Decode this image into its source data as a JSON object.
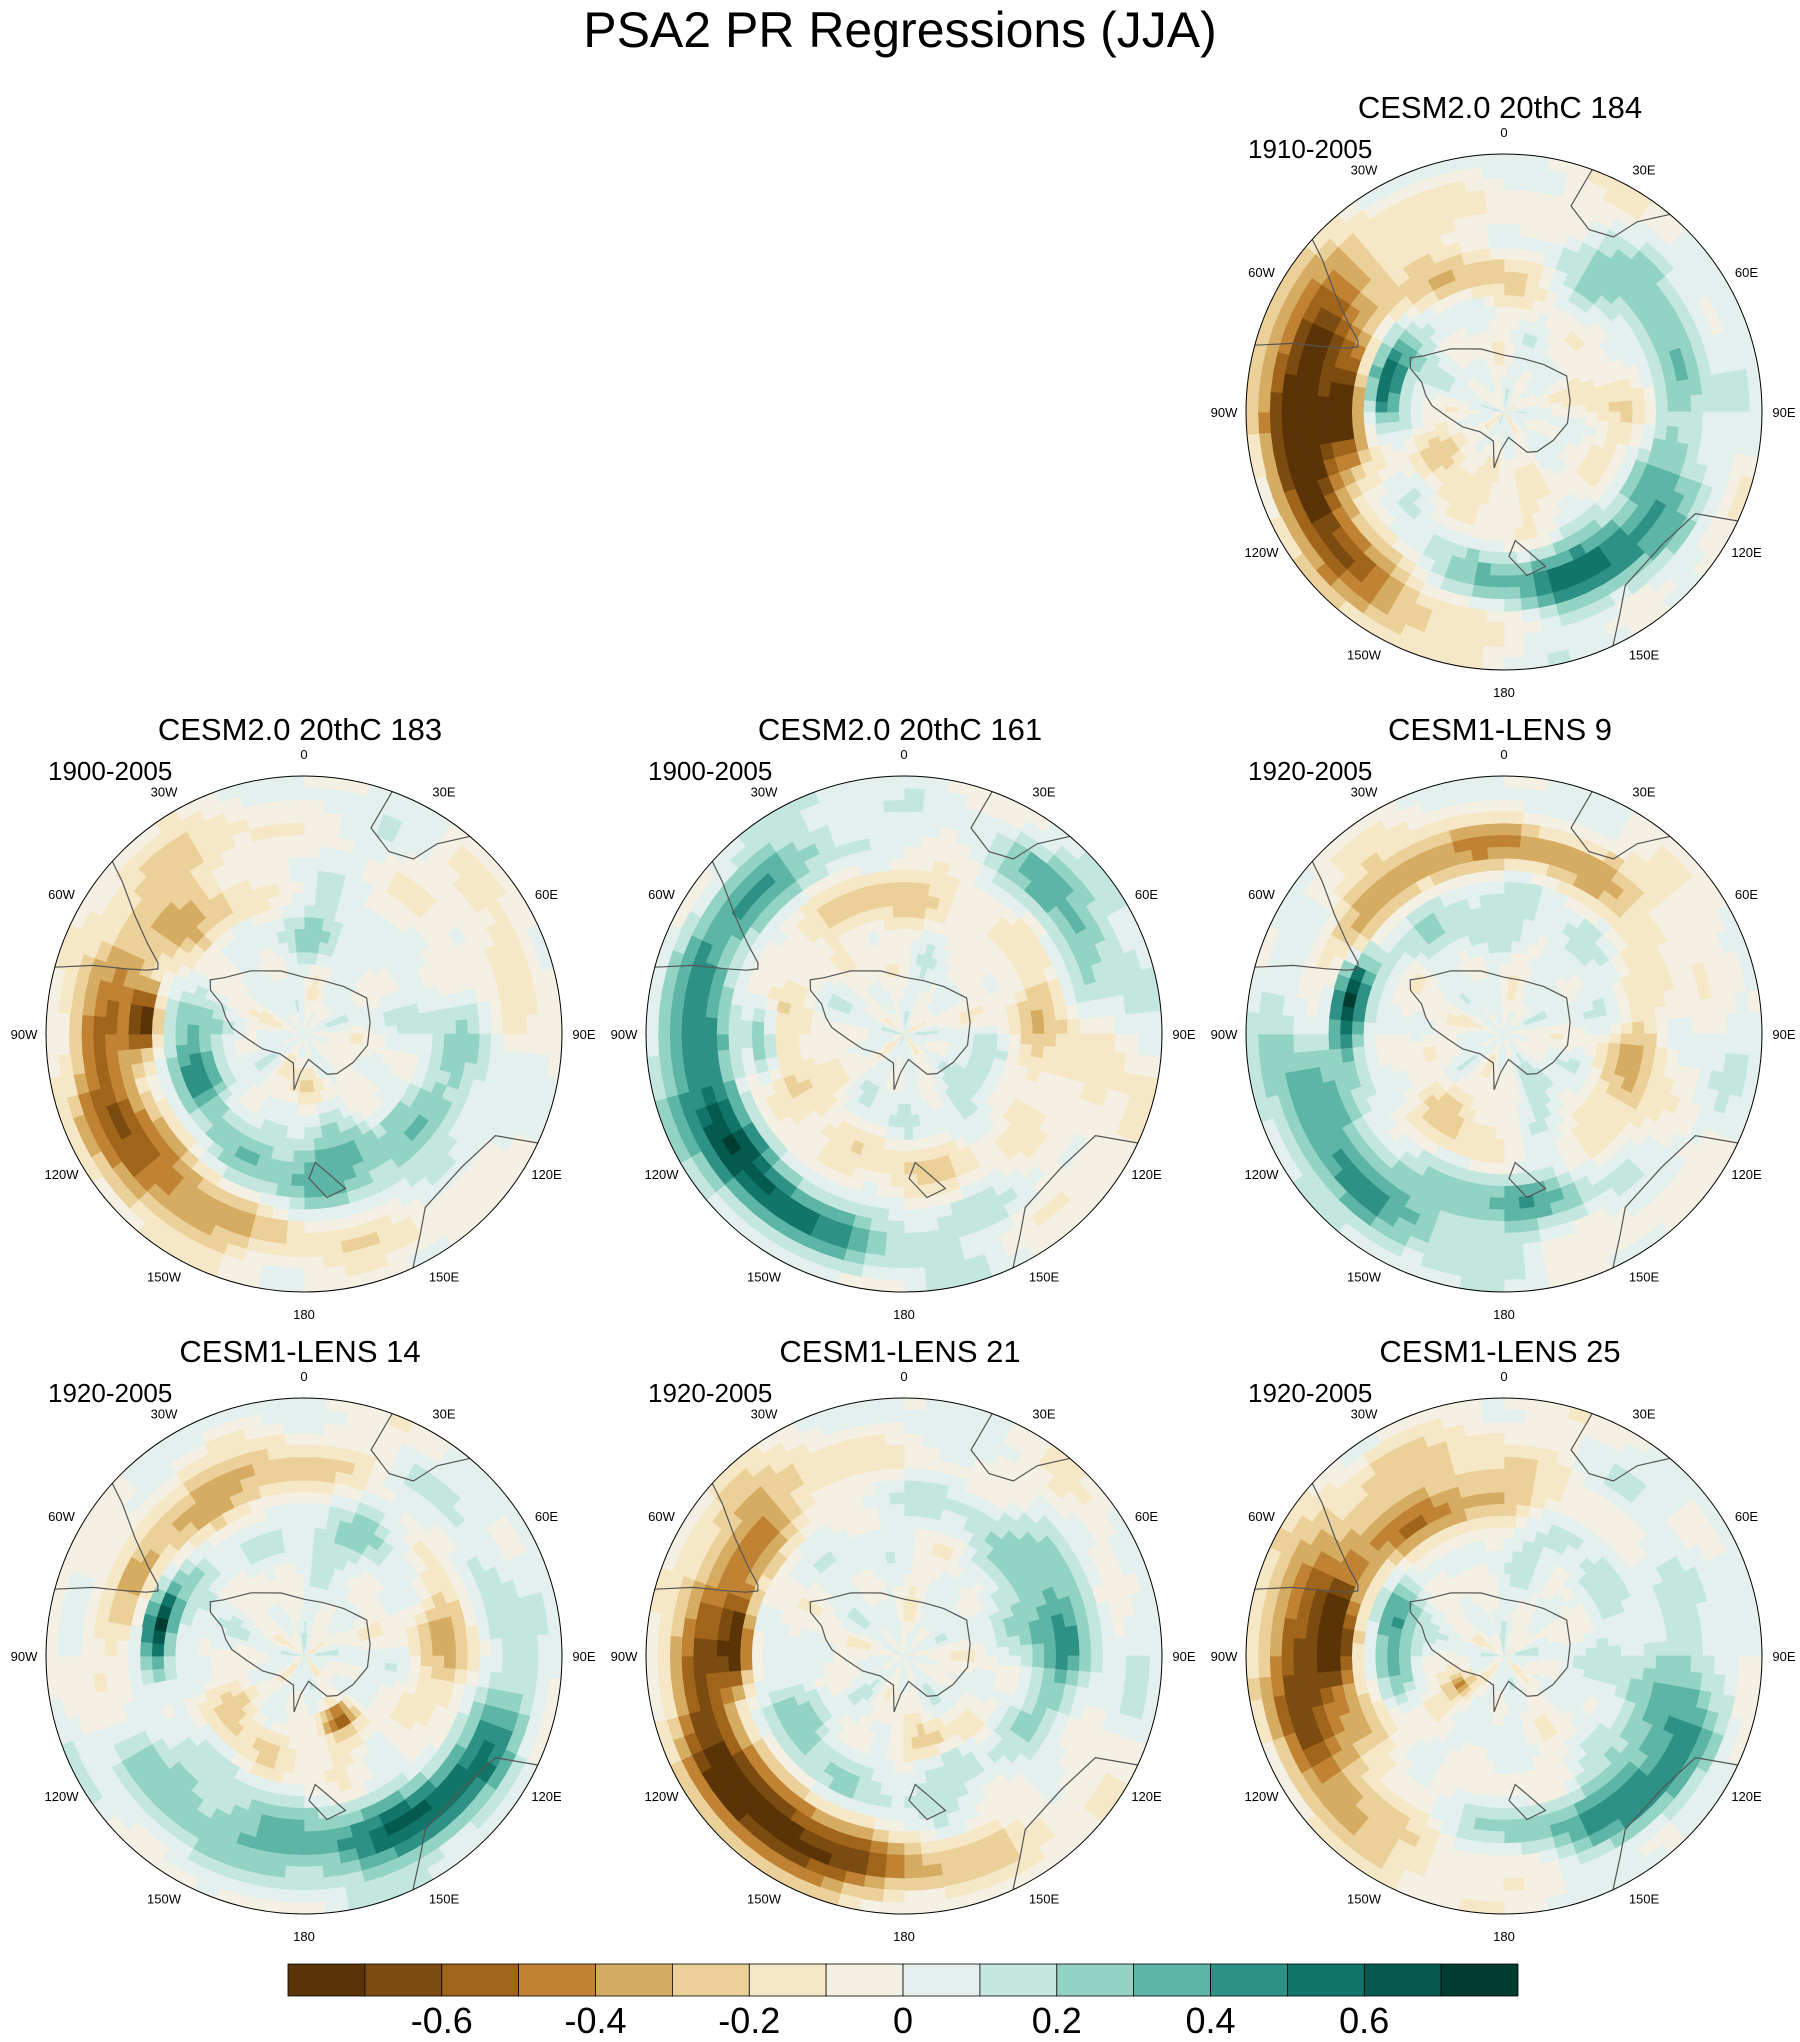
{
  "figure": {
    "title": "PSA2 PR Regressions (JJA)",
    "panels": [
      {
        "name": "CESM2.0 20thC 184",
        "period": "1910-2005",
        "pattern": "p184"
      },
      {
        "name": "CESM2.0 20thC 183",
        "period": "1900-2005",
        "pattern": "p183"
      },
      {
        "name": "CESM2.0 20thC 161",
        "period": "1900-2005",
        "pattern": "p161"
      },
      {
        "name": "CESM1-LENS 9",
        "period": "1920-2005",
        "pattern": "l9"
      },
      {
        "name": "CESM1-LENS 14",
        "period": "1920-2005",
        "pattern": "l14"
      },
      {
        "name": "CESM1-LENS 21",
        "period": "1920-2005",
        "pattern": "l21"
      },
      {
        "name": "CESM1-LENS 25",
        "period": "1920-2005",
        "pattern": "l25"
      }
    ],
    "longitude_labels": [
      "0",
      "30E",
      "60E",
      "90E",
      "120E",
      "150E",
      "180",
      "150W",
      "120W",
      "90W",
      "60W",
      "30W"
    ],
    "colorbar": {
      "colors": [
        "#5a3406",
        "#7c4b10",
        "#a0651b",
        "#c08333",
        "#d6ab62",
        "#ebd199",
        "#f6e8c6",
        "#f4f0e4",
        "#e4f0ee",
        "#c3e7df",
        "#93d3c4",
        "#5db5a6",
        "#2e9186",
        "#127569",
        "#055a4f",
        "#003c30"
      ],
      "tick_labels": [
        "-0.6",
        "-0.4",
        "-0.2",
        "0",
        "0.2",
        "0.4",
        "0.6"
      ],
      "tick_values": [
        -0.6,
        -0.4,
        -0.2,
        0,
        0.2,
        0.4,
        0.6
      ],
      "level_min": -0.8,
      "level_step": 0.1
    }
  }
}
